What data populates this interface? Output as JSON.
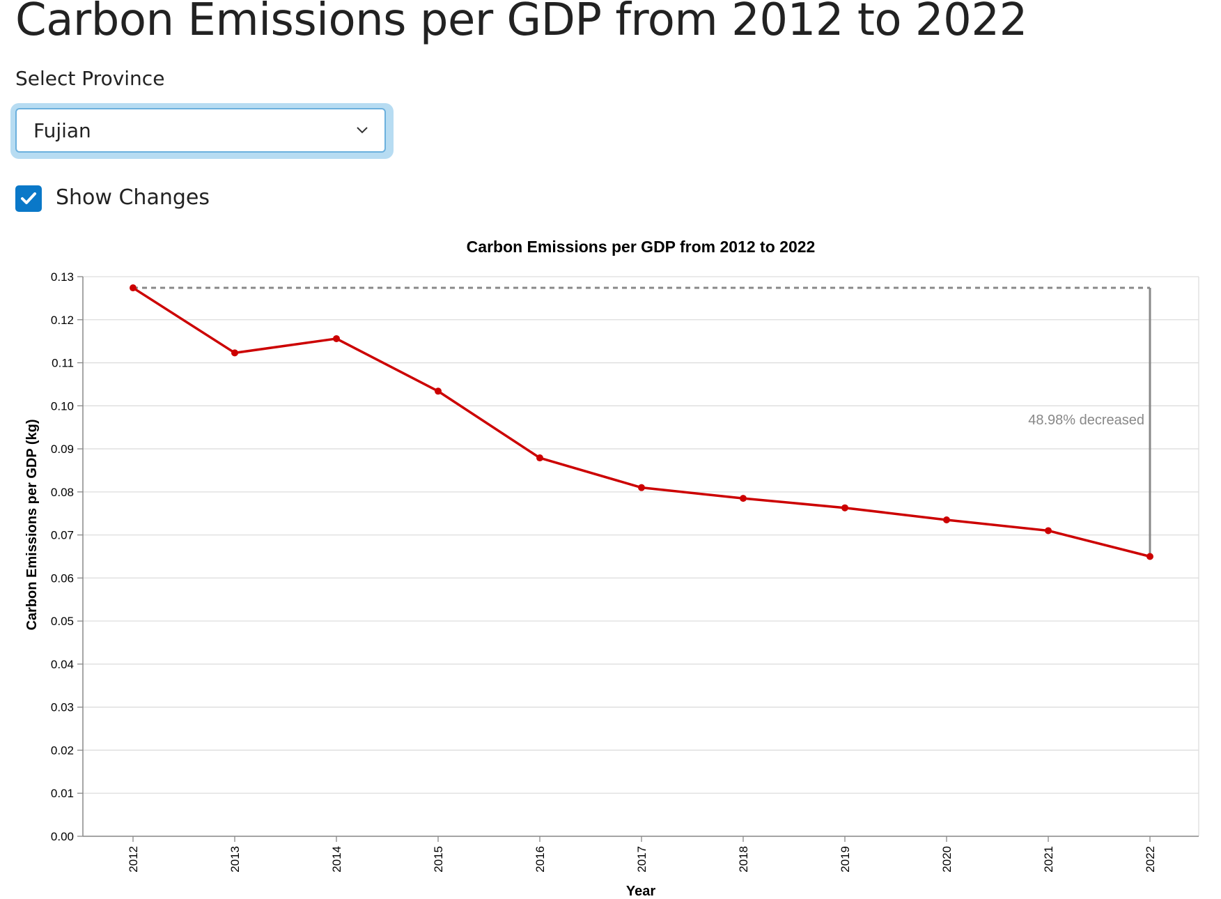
{
  "header": {
    "title": "Carbon Emissions per GDP from 2012 to 2022"
  },
  "controls": {
    "province_label": "Select Province",
    "province_value": "Fujian",
    "show_changes_label": "Show Changes",
    "show_changes_checked": true
  },
  "chart_data": {
    "type": "line",
    "title": "Carbon Emissions per GDP from 2012 to 2022",
    "xlabel": "Year",
    "ylabel": "Carbon Emissions per GDP (kg)",
    "x": [
      2012,
      2013,
      2014,
      2015,
      2016,
      2017,
      2018,
      2019,
      2020,
      2021,
      2022
    ],
    "series": [
      {
        "values": [
          0.1274,
          0.1123,
          0.1156,
          0.1034,
          0.0879,
          0.081,
          0.0785,
          0.0763,
          0.0735,
          0.071,
          0.065
        ]
      }
    ],
    "ylim": [
      0,
      0.13
    ],
    "yticks": [
      "0.00",
      "0.01",
      "0.02",
      "0.03",
      "0.04",
      "0.05",
      "0.06",
      "0.07",
      "0.08",
      "0.09",
      "0.10",
      "0.11",
      "0.12",
      "0.13"
    ],
    "grid": true,
    "line_color": "#cc0000",
    "annotation": {
      "text": "48.98% decreased",
      "from_year": 2012,
      "to_year": 2022,
      "color": "#888888"
    }
  }
}
